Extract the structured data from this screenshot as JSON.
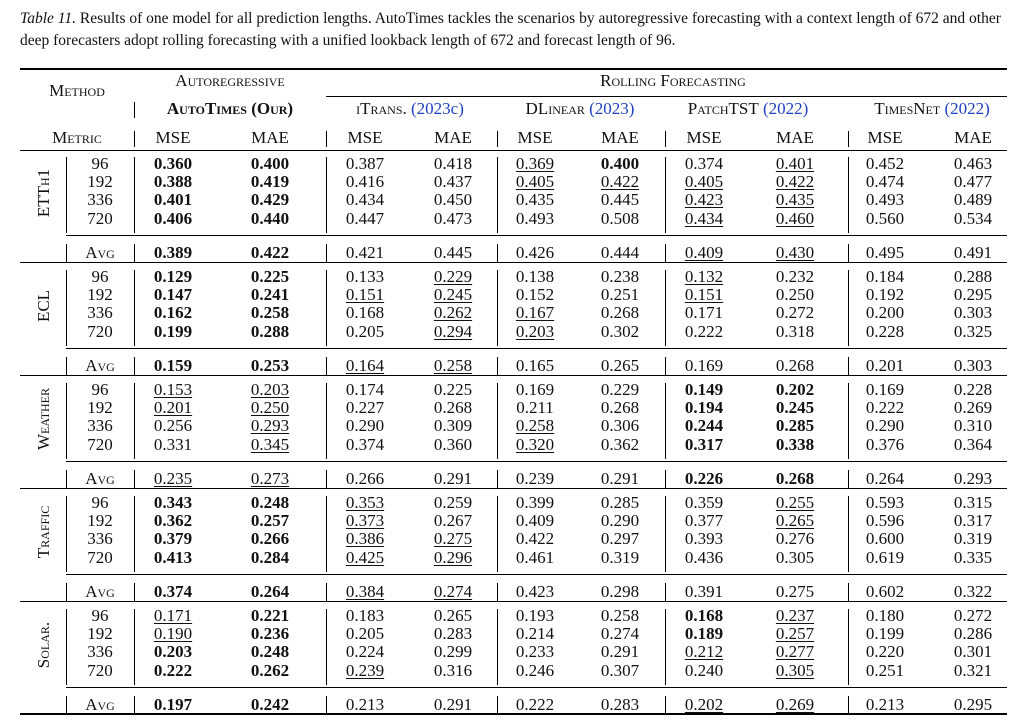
{
  "caption": {
    "label": "Table 11.",
    "text": " Results of one model for all prediction lengths. AutoTimes tackles the scenarios by autoregressive forecasting with a context length of 672 and other deep forecasters adopt rolling forecasting with a unified lookback length of 672 and forecast length of 96."
  },
  "header": {
    "method": "Method",
    "metric": "Metric",
    "autoregressive": "Autoregressive",
    "rolling": "Rolling Forecasting",
    "mse": "MSE",
    "mae": "MAE",
    "models": [
      {
        "name": "AutoTimes (Our)",
        "cite": ""
      },
      {
        "name": "iTrans.",
        "cite": "(2023c)"
      },
      {
        "name": "DLinear",
        "cite": "(2023)"
      },
      {
        "name": "PatchTST",
        "cite": "(2022)"
      },
      {
        "name": "TimesNet",
        "cite": "(2022)"
      }
    ]
  },
  "avg_label": "Avg",
  "horizons": [
    "96",
    "192",
    "336",
    "720"
  ],
  "datasets": [
    {
      "name": "ETTh1",
      "rows": [
        [
          "**0.360",
          "**0.400",
          "0.387",
          "0.418",
          "__0.369",
          "**0.400",
          "0.374",
          "__0.401",
          "0.452",
          "0.463"
        ],
        [
          "**0.388",
          "**0.419",
          "0.416",
          "0.437",
          "__0.405",
          "__0.422",
          "__0.405",
          "__0.422",
          "0.474",
          "0.477"
        ],
        [
          "**0.401",
          "**0.429",
          "0.434",
          "0.450",
          "0.435",
          "0.445",
          "__0.423",
          "__0.435",
          "0.493",
          "0.489"
        ],
        [
          "**0.406",
          "**0.440",
          "0.447",
          "0.473",
          "0.493",
          "0.508",
          "__0.434",
          "__0.460",
          "0.560",
          "0.534"
        ]
      ],
      "avg": [
        "**0.389",
        "**0.422",
        "0.421",
        "0.445",
        "0.426",
        "0.444",
        "__0.409",
        "__0.430",
        "0.495",
        "0.491"
      ]
    },
    {
      "name": "ECL",
      "rows": [
        [
          "**0.129",
          "**0.225",
          "0.133",
          "__0.229",
          "0.138",
          "0.238",
          "__0.132",
          "0.232",
          "0.184",
          "0.288"
        ],
        [
          "**0.147",
          "**0.241",
          "__0.151",
          "__0.245",
          "0.152",
          "0.251",
          "__0.151",
          "0.250",
          "0.192",
          "0.295"
        ],
        [
          "**0.162",
          "**0.258",
          "0.168",
          "__0.262",
          "__0.167",
          "0.268",
          "0.171",
          "0.272",
          "0.200",
          "0.303"
        ],
        [
          "**0.199",
          "**0.288",
          "0.205",
          "__0.294",
          "__0.203",
          "0.302",
          "0.222",
          "0.318",
          "0.228",
          "0.325"
        ]
      ],
      "avg": [
        "**0.159",
        "**0.253",
        "__0.164",
        "__0.258",
        "0.165",
        "0.265",
        "0.169",
        "0.268",
        "0.201",
        "0.303"
      ]
    },
    {
      "name": "Weather",
      "rows": [
        [
          "__0.153",
          "__0.203",
          "0.174",
          "0.225",
          "0.169",
          "0.229",
          "**0.149",
          "**0.202",
          "0.169",
          "0.228"
        ],
        [
          "__0.201",
          "__0.250",
          "0.227",
          "0.268",
          "0.211",
          "0.268",
          "**0.194",
          "**0.245",
          "0.222",
          "0.269"
        ],
        [
          "0.256",
          "__0.293",
          "0.290",
          "0.309",
          "__0.258",
          "0.306",
          "**0.244",
          "**0.285",
          "0.290",
          "0.310"
        ],
        [
          "0.331",
          "__0.345",
          "0.374",
          "0.360",
          "__0.320",
          "0.362",
          "**0.317",
          "**0.338",
          "0.376",
          "0.364"
        ]
      ],
      "avg": [
        "__0.235",
        "__0.273",
        "0.266",
        "0.291",
        "0.239",
        "0.291",
        "**0.226",
        "**0.268",
        "0.264",
        "0.293"
      ]
    },
    {
      "name": "Traffic",
      "rows": [
        [
          "**0.343",
          "**0.248",
          "__0.353",
          "0.259",
          "0.399",
          "0.285",
          "0.359",
          "__0.255",
          "0.593",
          "0.315"
        ],
        [
          "**0.362",
          "**0.257",
          "__0.373",
          "0.267",
          "0.409",
          "0.290",
          "0.377",
          "__0.265",
          "0.596",
          "0.317"
        ],
        [
          "**0.379",
          "**0.266",
          "__0.386",
          "__0.275",
          "0.422",
          "0.297",
          "0.393",
          "0.276",
          "0.600",
          "0.319"
        ],
        [
          "**0.413",
          "**0.284",
          "__0.425",
          "__0.296",
          "0.461",
          "0.319",
          "0.436",
          "0.305",
          "0.619",
          "0.335"
        ]
      ],
      "avg": [
        "**0.374",
        "**0.264",
        "__0.384",
        "__0.274",
        "0.423",
        "0.298",
        "0.391",
        "0.275",
        "0.602",
        "0.322"
      ]
    },
    {
      "name": "Solar.",
      "rows": [
        [
          "__0.171",
          "**0.221",
          "0.183",
          "0.265",
          "0.193",
          "0.258",
          "**0.168",
          "__0.237",
          "0.180",
          "0.272"
        ],
        [
          "__0.190",
          "**0.236",
          "0.205",
          "0.283",
          "0.214",
          "0.274",
          "**0.189",
          "__0.257",
          "0.199",
          "0.286"
        ],
        [
          "**0.203",
          "**0.248",
          "0.224",
          "0.299",
          "0.233",
          "0.291",
          "__0.212",
          "__0.277",
          "0.220",
          "0.301"
        ],
        [
          "**0.222",
          "**0.262",
          "__0.239",
          "0.316",
          "0.246",
          "0.307",
          "0.240",
          "__0.305",
          "0.251",
          "0.321"
        ]
      ],
      "avg": [
        "**0.197",
        "**0.242",
        "0.213",
        "0.291",
        "0.222",
        "0.283",
        "__0.202",
        "__0.269",
        "0.213",
        "0.295"
      ]
    }
  ]
}
